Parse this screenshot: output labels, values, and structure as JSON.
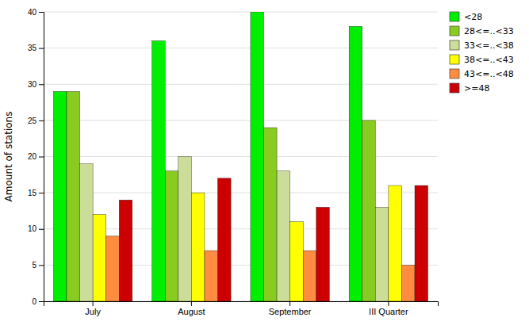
{
  "chart_data": {
    "type": "bar",
    "ylabel": "Amount of stations",
    "categories": [
      "July",
      "August",
      "September",
      "III Quarter"
    ],
    "series": [
      {
        "name": "<28",
        "color": "#00EE00",
        "values": [
          29,
          36,
          40,
          38
        ]
      },
      {
        "name": "28<=..<33",
        "color": "#88CC22",
        "values": [
          29,
          18,
          24,
          25
        ]
      },
      {
        "name": "33<=..<38",
        "color": "#CCDD99",
        "values": [
          19,
          20,
          18,
          13
        ]
      },
      {
        "name": "38<=..<43",
        "color": "#FFFF00",
        "values": [
          12,
          15,
          11,
          16
        ]
      },
      {
        "name": "43<=..<48",
        "color": "#FF8C40",
        "values": [
          9,
          7,
          7,
          5
        ]
      },
      {
        "name": ">=48",
        "color": "#CC0000",
        "values": [
          14,
          17,
          13,
          16
        ]
      }
    ],
    "ylim": [
      0,
      40
    ],
    "yticks": [
      0,
      5,
      10,
      15,
      20,
      25,
      30,
      35,
      40
    ],
    "grid": true,
    "legend": "upper right"
  }
}
